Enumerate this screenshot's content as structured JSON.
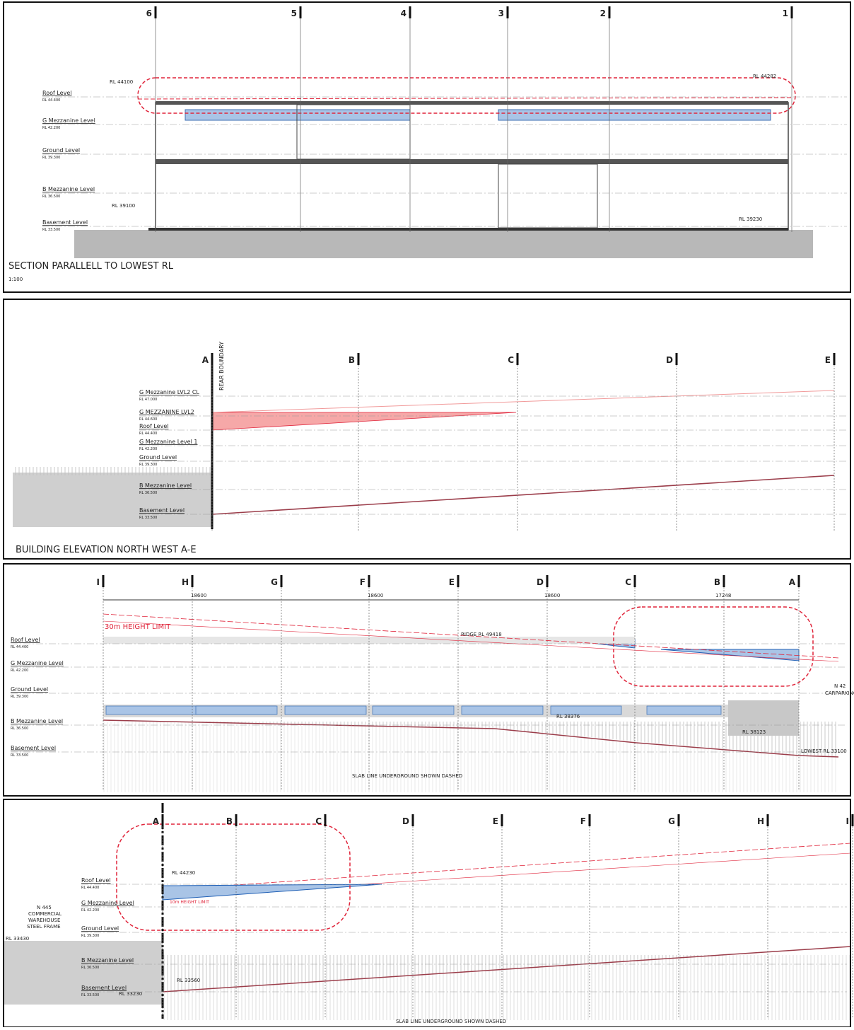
{
  "panels": [
    {
      "title": "SECTION PARALLELL TO LOWEST RL",
      "scale": "1:100",
      "gridlines": [
        "6",
        "5",
        "4",
        "3",
        "2",
        "1"
      ],
      "levels": [
        {
          "name": "Roof Level",
          "rl": "RL 44.400"
        },
        {
          "name": "G Mezzanine Level",
          "rl": "RL 42.200"
        },
        {
          "name": "Ground Level",
          "rl": "RL 39.300"
        },
        {
          "name": "B Mezzanine Level",
          "rl": "RL 36.500"
        },
        {
          "name": "Basement Level",
          "rl": "RL 33.500"
        }
      ],
      "annotations": [
        "RL 44100",
        "RL 44282",
        "RL 39100",
        "RL 39230"
      ]
    },
    {
      "title": "BUILDING ELEVATION NORTH WEST  A-E",
      "boundary": "REAR BOUNDARY",
      "gridlines": [
        "A",
        "B",
        "C",
        "D",
        "E"
      ],
      "levels": [
        {
          "name": "G Mezzanine LVL2 CL",
          "rl": "RL 47.000"
        },
        {
          "name": "G MEZZANINE LVL2",
          "rl": "RL 44.600"
        },
        {
          "name": "Roof Level",
          "rl": "RL 44.400"
        },
        {
          "name": "G Mezzanine Level 1",
          "rl": "RL 42.200"
        },
        {
          "name": "Ground Level",
          "rl": "RL 39.300"
        },
        {
          "name": "B Mezzanine Level",
          "rl": "RL 36.500"
        },
        {
          "name": "Basement Level",
          "rl": "RL 33.500"
        }
      ]
    },
    {
      "gridlines": [
        "I",
        "H",
        "G",
        "F",
        "E",
        "D",
        "C",
        "B",
        "A"
      ],
      "dimensions": [
        "18600",
        "18600",
        "18600",
        "17248"
      ],
      "height_limit": "30m HEIGHT LIMIT",
      "levels": [
        {
          "name": "Roof Level",
          "rl": "RL 44.400"
        },
        {
          "name": "G Mezzanine Level",
          "rl": "RL 42.200"
        },
        {
          "name": "Ground Level",
          "rl": "RL 39.300"
        },
        {
          "name": "B Mezzanine Level",
          "rl": "RL 36.500"
        },
        {
          "name": "Basement Level",
          "rl": "RL 33.500"
        }
      ],
      "annotations": [
        "RIDGE RL 49418",
        "RL 38376",
        "RL 38123",
        "LOWEST RL 33100",
        "SLAB LINE UNDERGROUND SHOWN DASHED",
        "N 42",
        "CARPARKING"
      ]
    },
    {
      "gridlines": [
        "A",
        "B",
        "C",
        "D",
        "E",
        "F",
        "G",
        "H",
        "I"
      ],
      "height_limit": "10m HEIGHT LIMIT",
      "levels": [
        {
          "name": "Roof Level",
          "rl": "RL 44.400"
        },
        {
          "name": "G Mezzanine Level",
          "rl": "RL 42.200"
        },
        {
          "name": "Ground Level",
          "rl": "RL 39.300"
        },
        {
          "name": "B Mezzanine Level",
          "rl": "RL 36.500"
        },
        {
          "name": "Basement Level",
          "rl": "RL 33.500"
        }
      ],
      "annotations": [
        "RL 44230",
        "RL 33560",
        "RL 33230",
        "RL 33430",
        "N 445",
        "COMMERCIAL",
        "WAREHOUSE",
        "STEEL FRAME",
        "SLAB LINE UNDERGROUND SHOWN DASHED"
      ]
    }
  ]
}
